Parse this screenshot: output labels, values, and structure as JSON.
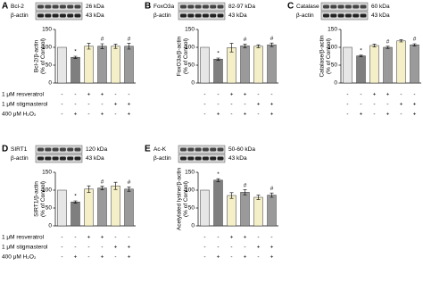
{
  "chart_data": [
    {
      "type": "bar",
      "panel_label": "A",
      "blot_labels": [
        "Bcl-2",
        "26 kDa",
        "β-actin",
        "43 kDa"
      ],
      "y_label": "Bcl-2/β-actin",
      "y_label_2": "(% of Control)",
      "categories": [
        null,
        null,
        null,
        null,
        null,
        null
      ],
      "values": [
        100,
        72,
        103,
        103,
        103,
        103
      ],
      "errors": [
        0,
        3,
        8,
        7,
        6,
        8
      ],
      "annotations": [
        null,
        "*",
        null,
        "#",
        null,
        "#"
      ],
      "colors": [
        "#e6e6e6",
        "#7f7f7f",
        "#f5efc8",
        "#9a9a9a",
        "#f5efc8",
        "#9a9a9a"
      ],
      "ylim": [
        0,
        150
      ],
      "yticks": [
        0,
        50,
        100,
        150
      ],
      "treatment_names": [
        "1 μM resveratrol",
        "1 μM stigmasterol",
        "400 μM H₂O₂"
      ],
      "treatment_signs": [
        [
          "-",
          "-",
          "+",
          "+",
          "-",
          "-"
        ],
        [
          "-",
          "-",
          "-",
          "-",
          "+",
          "+"
        ],
        [
          "-",
          "+",
          "-",
          "+",
          "-",
          "+"
        ]
      ]
    },
    {
      "type": "bar",
      "panel_label": "B",
      "blot_labels": [
        "FoxO3a",
        "82-97 kDa",
        "β-actin",
        "43 kDa"
      ],
      "y_label": "FoxO3a/β-actin",
      "y_label_2": "(% of Control)",
      "categories": [
        null,
        null,
        null,
        null,
        null,
        null
      ],
      "values": [
        100,
        67,
        99,
        104,
        103,
        107
      ],
      "errors": [
        0,
        3,
        12,
        5,
        4,
        5
      ],
      "annotations": [
        null,
        "*",
        null,
        "#",
        null,
        "#"
      ],
      "colors": [
        "#e6e6e6",
        "#7f7f7f",
        "#f5efc8",
        "#9a9a9a",
        "#f5efc8",
        "#9a9a9a"
      ],
      "ylim": [
        0,
        150
      ],
      "yticks": [
        0,
        50,
        100,
        150
      ],
      "treatment_signs": [
        [
          "-",
          "-",
          "+",
          "+",
          "-",
          "-"
        ],
        [
          "-",
          "-",
          "-",
          "-",
          "+",
          "+"
        ],
        [
          "-",
          "+",
          "-",
          "+",
          "-",
          "+"
        ]
      ]
    },
    {
      "type": "bar",
      "panel_label": "C",
      "blot_labels": [
        "Catalase",
        "60 kDa",
        "β-actin",
        "43 kDa"
      ],
      "y_label": "Catalase/β-actin",
      "y_label_2": "(% of Control)",
      "categories": [
        null,
        null,
        null,
        null,
        null,
        null
      ],
      "values": [
        100,
        76,
        105,
        100,
        118,
        107
      ],
      "errors": [
        0,
        2,
        4,
        3,
        3,
        3
      ],
      "annotations": [
        null,
        "*",
        null,
        "#",
        null,
        "#"
      ],
      "colors": [
        "#e6e6e6",
        "#7f7f7f",
        "#f5efc8",
        "#9a9a9a",
        "#f5efc8",
        "#9a9a9a"
      ],
      "ylim": [
        0,
        150
      ],
      "yticks": [
        0,
        50,
        100,
        150
      ],
      "treatment_signs": [
        [
          "-",
          "-",
          "+",
          "+",
          "-",
          "-"
        ],
        [
          "-",
          "-",
          "-",
          "-",
          "+",
          "+"
        ],
        [
          "-",
          "+",
          "-",
          "+",
          "-",
          "+"
        ]
      ]
    },
    {
      "type": "bar",
      "panel_label": "D",
      "blot_labels": [
        "SIRT1",
        "120 kDa",
        "β-actin",
        "43 kDa"
      ],
      "y_label": "SIRT1/β-actin",
      "y_label_2": "(% of Control)",
      "categories": [
        null,
        null,
        null,
        null,
        null,
        null
      ],
      "values": [
        100,
        67,
        103,
        106,
        112,
        103
      ],
      "errors": [
        0,
        3,
        9,
        5,
        10,
        6
      ],
      "annotations": [
        null,
        "*",
        null,
        "#",
        null,
        "#"
      ],
      "colors": [
        "#e6e6e6",
        "#7f7f7f",
        "#f5efc8",
        "#9a9a9a",
        "#f5efc8",
        "#9a9a9a"
      ],
      "ylim": [
        0,
        150
      ],
      "yticks": [
        0,
        50,
        100,
        150
      ],
      "treatment_names": [
        "1 μM resveratrol",
        "1 μM stigmasterol",
        "400 μM H₂O₂"
      ],
      "treatment_signs": [
        [
          "-",
          "-",
          "+",
          "+",
          "-",
          "-"
        ],
        [
          "-",
          "-",
          "-",
          "-",
          "+",
          "+"
        ],
        [
          "-",
          "+",
          "-",
          "+",
          "-",
          "+"
        ]
      ]
    },
    {
      "type": "bar",
      "panel_label": "E",
      "blot_labels": [
        "Ac-K",
        "50-60 kDa",
        "β-actin",
        "43 kDa"
      ],
      "y_label": "Acetylated lysine/β-actin",
      "y_label_2": "(% of Control)",
      "categories": [
        null,
        null,
        null,
        null,
        null,
        null
      ],
      "values": [
        100,
        128,
        85,
        94,
        80,
        86
      ],
      "errors": [
        0,
        4,
        8,
        7,
        6,
        6
      ],
      "annotations": [
        null,
        "*",
        null,
        "#",
        null,
        "#"
      ],
      "colors": [
        "#e6e6e6",
        "#7f7f7f",
        "#f5efc8",
        "#9a9a9a",
        "#f5efc8",
        "#9a9a9a"
      ],
      "ylim": [
        0,
        150
      ],
      "yticks": [
        0,
        50,
        100,
        150
      ],
      "treatment_signs": [
        [
          "-",
          "-",
          "+",
          "+",
          "-",
          "-"
        ],
        [
          "-",
          "-",
          "-",
          "-",
          "+",
          "+"
        ],
        [
          "-",
          "+",
          "-",
          "+",
          "-",
          "+"
        ]
      ]
    }
  ]
}
